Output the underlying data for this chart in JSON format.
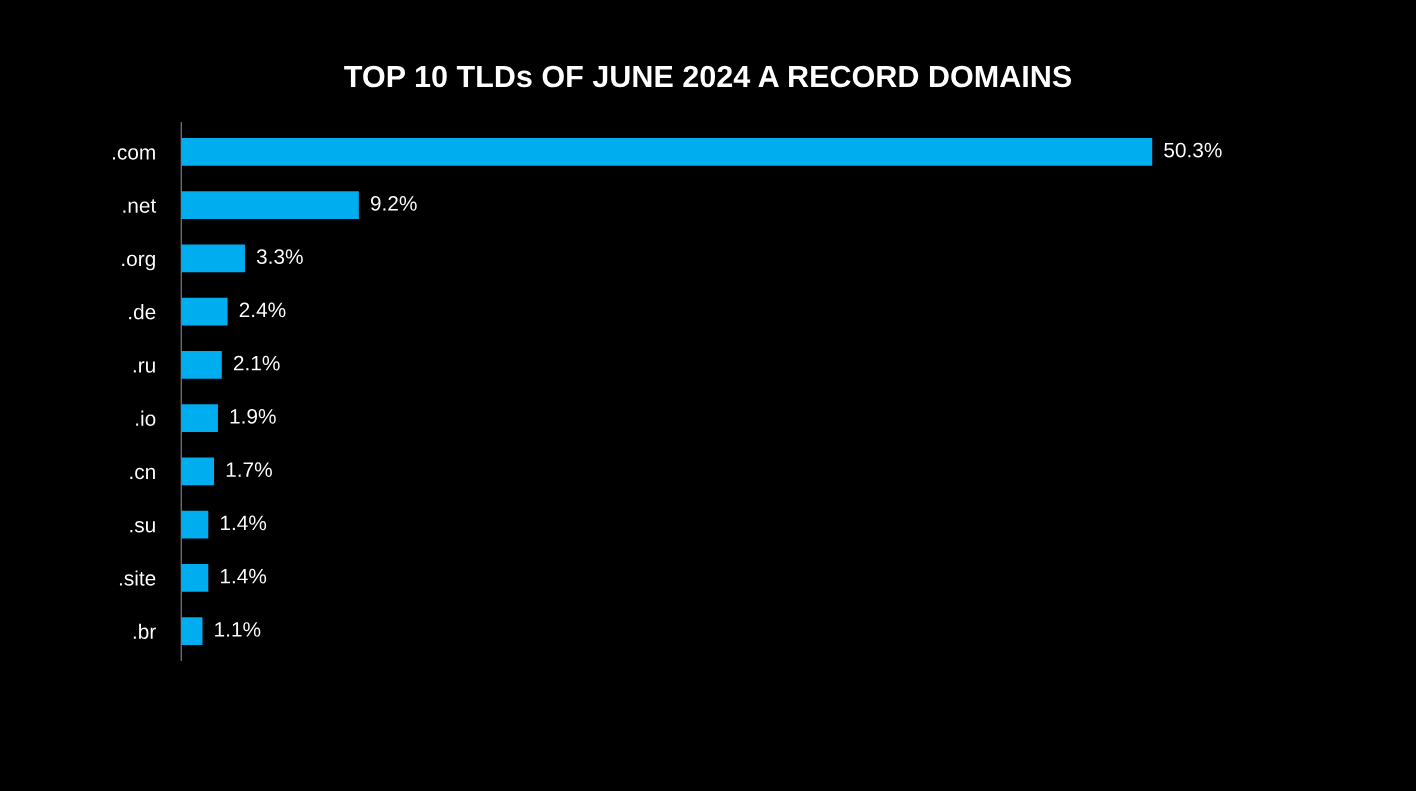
{
  "chart_data": {
    "type": "bar",
    "orientation": "horizontal",
    "title": "TOP 10 TLDs OF JUNE 2024 A RECORD DOMAINS",
    "categories": [
      ".com",
      ".net",
      ".org",
      ".de",
      ".ru",
      ".io",
      ".cn",
      ".su",
      ".site",
      ".br"
    ],
    "values": [
      50.3,
      9.2,
      3.3,
      2.4,
      2.1,
      1.9,
      1.7,
      1.4,
      1.4,
      1.1
    ],
    "value_labels": [
      "50.3%",
      "9.2%",
      "3.3%",
      "2.4%",
      "2.1%",
      "1.9%",
      "1.7%",
      "1.4%",
      "1.4%",
      "1.1%"
    ],
    "color": "#00aeef",
    "grid": false,
    "legend": false
  }
}
